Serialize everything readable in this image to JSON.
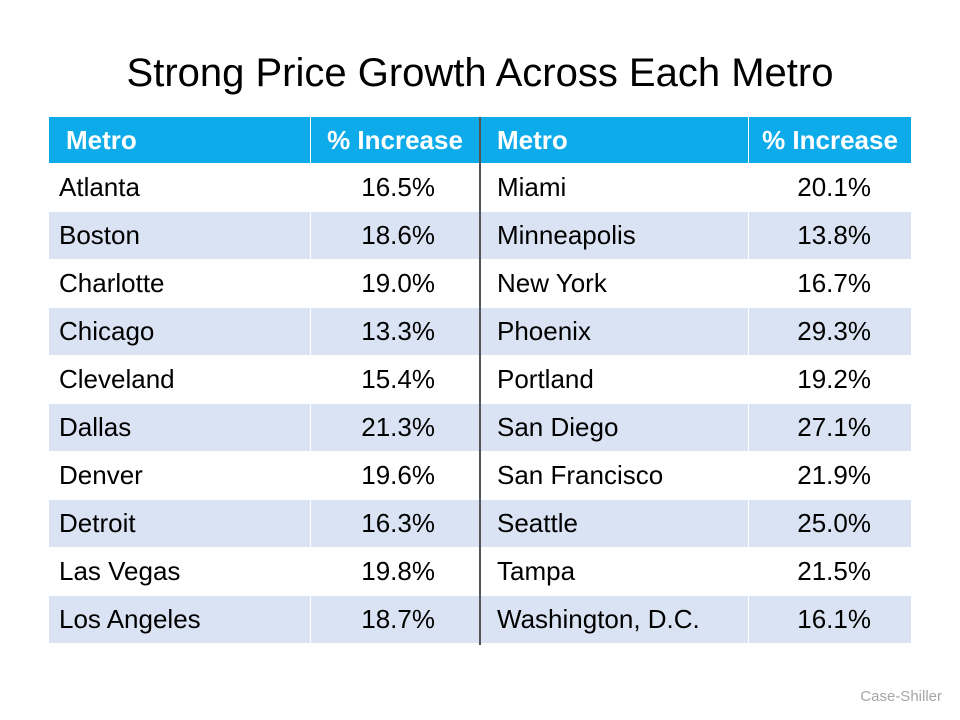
{
  "title": "Strong Price Growth Across Each Metro",
  "headers": [
    "Metro",
    "% Increase",
    "Metro",
    "% Increase"
  ],
  "rows": [
    [
      "Atlanta",
      "16.5%",
      "Miami",
      "20.1%"
    ],
    [
      "Boston",
      "18.6%",
      "Minneapolis",
      "13.8%"
    ],
    [
      "Charlotte",
      "19.0%",
      "New York",
      "16.7%"
    ],
    [
      "Chicago",
      "13.3%",
      "Phoenix",
      "29.3%"
    ],
    [
      "Cleveland",
      "15.4%",
      "Portland",
      "19.2%"
    ],
    [
      "Dallas",
      "21.3%",
      "San Diego",
      "27.1%"
    ],
    [
      "Denver",
      "19.6%",
      "San Francisco",
      "21.9%"
    ],
    [
      "Detroit",
      "16.3%",
      "Seattle",
      "25.0%"
    ],
    [
      "Las Vegas",
      "19.8%",
      "Tampa",
      "21.5%"
    ],
    [
      "Los Angeles",
      "18.7%",
      "Washington, D.C.",
      "16.1%"
    ]
  ],
  "source": "Case-Shiller",
  "colors": {
    "header": "#0eabea",
    "alt_row": "#dae3f3"
  }
}
